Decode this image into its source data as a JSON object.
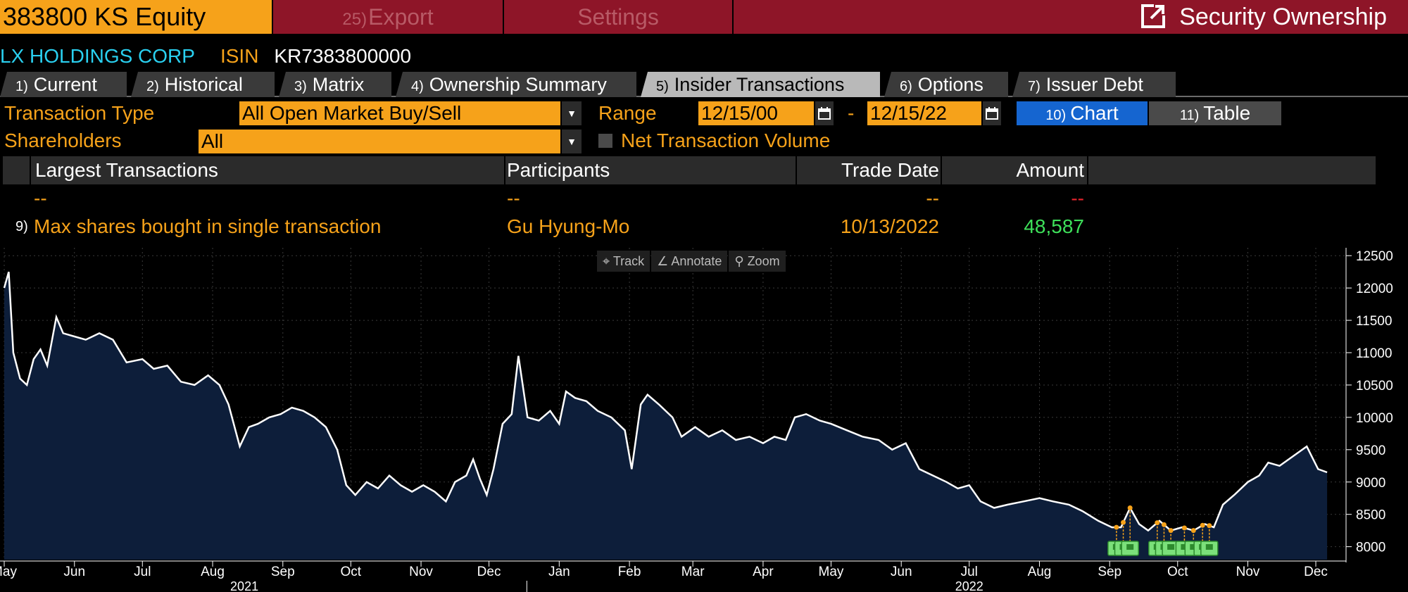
{
  "topbar": {
    "ticker": "383800 KS Equity",
    "export_num": "25)",
    "export_label": "Export",
    "settings_label": "Settings",
    "title": "Security Ownership"
  },
  "security": {
    "name": "LX HOLDINGS CORP",
    "isin_label": "ISIN",
    "isin_value": "KR7383800000"
  },
  "tabs": [
    {
      "num": "1)",
      "label": "Current"
    },
    {
      "num": "2)",
      "label": "Historical"
    },
    {
      "num": "3)",
      "label": "Matrix"
    },
    {
      "num": "4)",
      "label": "Ownership Summary"
    },
    {
      "num": "5)",
      "label": "Insider Transactions"
    },
    {
      "num": "6)",
      "label": "Options"
    },
    {
      "num": "7)",
      "label": "Issuer Debt"
    }
  ],
  "controls": {
    "transaction_type_label": "Transaction Type",
    "transaction_type_value": "All Open Market Buy/Sell",
    "range_label": "Range",
    "range_start": "12/15/00",
    "range_sep": "-",
    "range_end": "12/15/22",
    "chart_num": "10)",
    "chart_label": "Chart",
    "table_num": "11)",
    "table_label": "Table",
    "shareholders_label": "Shareholders",
    "shareholders_value": "All",
    "net_volume_label": "Net Transaction Volume"
  },
  "table": {
    "headers": [
      "Largest Transactions",
      "Participants",
      "Trade Date",
      "Amount"
    ],
    "rows": [
      {
        "num": "",
        "desc": "--",
        "participant": "--",
        "date": "--",
        "amount": "--"
      },
      {
        "num": "9)",
        "desc": "Max shares bought in single transaction",
        "participant": "Gu Hyung-Mo",
        "date": "10/13/2022",
        "amount": "48,587"
      }
    ]
  },
  "chart_tools": [
    "Track",
    "Annotate",
    "Zoom"
  ],
  "colors": {
    "accent_orange": "#f6a21a",
    "topbar_red": "#8e1528",
    "cyan": "#2ad0f0",
    "positive_green": "#3ee05a",
    "negative_red": "#e8242c",
    "chart_fill": "#0d1e3a",
    "active_blue": "#1565d0"
  },
  "chart_data": {
    "type": "area",
    "y_ticks": [
      8000,
      8500,
      9000,
      9500,
      10000,
      10500,
      11000,
      11500,
      12000,
      12500
    ],
    "ylim": [
      7800,
      12600
    ],
    "x_ticks": [
      {
        "label": "May",
        "date": "2021-05-01"
      },
      {
        "label": "Jun",
        "date": "2021-06-01"
      },
      {
        "label": "Jul",
        "date": "2021-07-01"
      },
      {
        "label": "Aug",
        "date": "2021-08-01"
      },
      {
        "label": "Sep",
        "date": "2021-09-01"
      },
      {
        "label": "Oct",
        "date": "2021-10-01"
      },
      {
        "label": "Nov",
        "date": "2021-11-01"
      },
      {
        "label": "Dec",
        "date": "2021-12-01"
      },
      {
        "label": "Jan",
        "date": "2022-01-01"
      },
      {
        "label": "Feb",
        "date": "2022-02-01"
      },
      {
        "label": "Mar",
        "date": "2022-03-01"
      },
      {
        "label": "Apr",
        "date": "2022-04-01"
      },
      {
        "label": "May",
        "date": "2022-05-01"
      },
      {
        "label": "Jun",
        "date": "2022-06-01"
      },
      {
        "label": "Jul",
        "date": "2022-07-01"
      },
      {
        "label": "Aug",
        "date": "2022-08-01"
      },
      {
        "label": "Sep",
        "date": "2022-09-01"
      },
      {
        "label": "Oct",
        "date": "2022-10-01"
      },
      {
        "label": "Nov",
        "date": "2022-11-01"
      },
      {
        "label": "Dec",
        "date": "2022-12-01"
      }
    ],
    "year_labels": [
      {
        "label": "2021",
        "date": "2021-08-15"
      },
      {
        "label": "2022",
        "date": "2022-07-01"
      }
    ],
    "grid": true,
    "series": [
      {
        "points": [
          [
            "2021-05-01",
            12000
          ],
          [
            "2021-05-03",
            12250
          ],
          [
            "2021-05-05",
            11000
          ],
          [
            "2021-05-08",
            10600
          ],
          [
            "2021-05-11",
            10500
          ],
          [
            "2021-05-14",
            10900
          ],
          [
            "2021-05-17",
            11050
          ],
          [
            "2021-05-20",
            10800
          ],
          [
            "2021-05-24",
            11550
          ],
          [
            "2021-05-27",
            11300
          ],
          [
            "2021-06-01",
            11250
          ],
          [
            "2021-06-06",
            11200
          ],
          [
            "2021-06-12",
            11300
          ],
          [
            "2021-06-18",
            11200
          ],
          [
            "2021-06-24",
            10850
          ],
          [
            "2021-07-01",
            10900
          ],
          [
            "2021-07-06",
            10750
          ],
          [
            "2021-07-12",
            10800
          ],
          [
            "2021-07-18",
            10550
          ],
          [
            "2021-07-24",
            10500
          ],
          [
            "2021-07-30",
            10650
          ],
          [
            "2021-08-04",
            10500
          ],
          [
            "2021-08-08",
            10200
          ],
          [
            "2021-08-13",
            9550
          ],
          [
            "2021-08-17",
            9850
          ],
          [
            "2021-08-21",
            9900
          ],
          [
            "2021-08-26",
            10000
          ],
          [
            "2021-08-31",
            10050
          ],
          [
            "2021-09-05",
            10150
          ],
          [
            "2021-09-10",
            10100
          ],
          [
            "2021-09-15",
            10000
          ],
          [
            "2021-09-20",
            9850
          ],
          [
            "2021-09-25",
            9500
          ],
          [
            "2021-09-29",
            8950
          ],
          [
            "2021-10-03",
            8800
          ],
          [
            "2021-10-08",
            9000
          ],
          [
            "2021-10-13",
            8900
          ],
          [
            "2021-10-18",
            9100
          ],
          [
            "2021-10-23",
            8950
          ],
          [
            "2021-10-28",
            8850
          ],
          [
            "2021-11-02",
            8950
          ],
          [
            "2021-11-07",
            8850
          ],
          [
            "2021-11-12",
            8700
          ],
          [
            "2021-11-16",
            9000
          ],
          [
            "2021-11-21",
            9100
          ],
          [
            "2021-11-24",
            9350
          ],
          [
            "2021-11-27",
            9050
          ],
          [
            "2021-11-30",
            8800
          ],
          [
            "2021-12-03",
            9200
          ],
          [
            "2021-12-07",
            9900
          ],
          [
            "2021-12-11",
            10050
          ],
          [
            "2021-12-14",
            10950
          ],
          [
            "2021-12-18",
            10000
          ],
          [
            "2021-12-23",
            9950
          ],
          [
            "2021-12-28",
            10100
          ],
          [
            "2022-01-01",
            9900
          ],
          [
            "2022-01-04",
            10400
          ],
          [
            "2022-01-08",
            10300
          ],
          [
            "2022-01-13",
            10250
          ],
          [
            "2022-01-18",
            10100
          ],
          [
            "2022-01-24",
            10000
          ],
          [
            "2022-01-30",
            9800
          ],
          [
            "2022-02-02",
            9200
          ],
          [
            "2022-02-06",
            10200
          ],
          [
            "2022-02-09",
            10350
          ],
          [
            "2022-02-14",
            10200
          ],
          [
            "2022-02-20",
            10000
          ],
          [
            "2022-02-24",
            9700
          ],
          [
            "2022-03-02",
            9850
          ],
          [
            "2022-03-08",
            9700
          ],
          [
            "2022-03-14",
            9800
          ],
          [
            "2022-03-20",
            9650
          ],
          [
            "2022-03-26",
            9700
          ],
          [
            "2022-04-01",
            9600
          ],
          [
            "2022-04-06",
            9700
          ],
          [
            "2022-04-11",
            9650
          ],
          [
            "2022-04-15",
            10000
          ],
          [
            "2022-04-20",
            10050
          ],
          [
            "2022-04-26",
            9950
          ],
          [
            "2022-05-01",
            9900
          ],
          [
            "2022-05-08",
            9800
          ],
          [
            "2022-05-15",
            9700
          ],
          [
            "2022-05-22",
            9650
          ],
          [
            "2022-05-28",
            9500
          ],
          [
            "2022-06-03",
            9600
          ],
          [
            "2022-06-09",
            9200
          ],
          [
            "2022-06-15",
            9100
          ],
          [
            "2022-06-21",
            9000
          ],
          [
            "2022-06-26",
            8900
          ],
          [
            "2022-07-01",
            8950
          ],
          [
            "2022-07-06",
            8700
          ],
          [
            "2022-07-12",
            8600
          ],
          [
            "2022-07-18",
            8650
          ],
          [
            "2022-07-25",
            8700
          ],
          [
            "2022-08-01",
            8750
          ],
          [
            "2022-08-07",
            8700
          ],
          [
            "2022-08-14",
            8650
          ],
          [
            "2022-08-20",
            8550
          ],
          [
            "2022-08-27",
            8400
          ],
          [
            "2022-09-02",
            8300
          ],
          [
            "2022-09-06",
            8300
          ],
          [
            "2022-09-10",
            8600
          ],
          [
            "2022-09-14",
            8350
          ],
          [
            "2022-09-18",
            8250
          ],
          [
            "2022-09-23",
            8400
          ],
          [
            "2022-09-28",
            8250
          ],
          [
            "2022-10-03",
            8300
          ],
          [
            "2022-10-08",
            8250
          ],
          [
            "2022-10-13",
            8350
          ],
          [
            "2022-10-17",
            8300
          ],
          [
            "2022-10-21",
            8650
          ],
          [
            "2022-10-26",
            8800
          ],
          [
            "2022-11-01",
            9000
          ],
          [
            "2022-11-06",
            9100
          ],
          [
            "2022-11-10",
            9300
          ],
          [
            "2022-11-15",
            9250
          ],
          [
            "2022-11-21",
            9400
          ],
          [
            "2022-11-27",
            9550
          ],
          [
            "2022-12-02",
            9200
          ],
          [
            "2022-12-06",
            9150
          ]
        ]
      }
    ],
    "transaction_markers": [
      {
        "date": "2022-09-04"
      },
      {
        "date": "2022-09-07"
      },
      {
        "date": "2022-09-10"
      },
      {
        "date": "2022-09-22"
      },
      {
        "date": "2022-09-25"
      },
      {
        "date": "2022-09-28"
      },
      {
        "date": "2022-10-04"
      },
      {
        "date": "2022-10-08"
      },
      {
        "date": "2022-10-12"
      },
      {
        "date": "2022-10-15"
      }
    ]
  }
}
